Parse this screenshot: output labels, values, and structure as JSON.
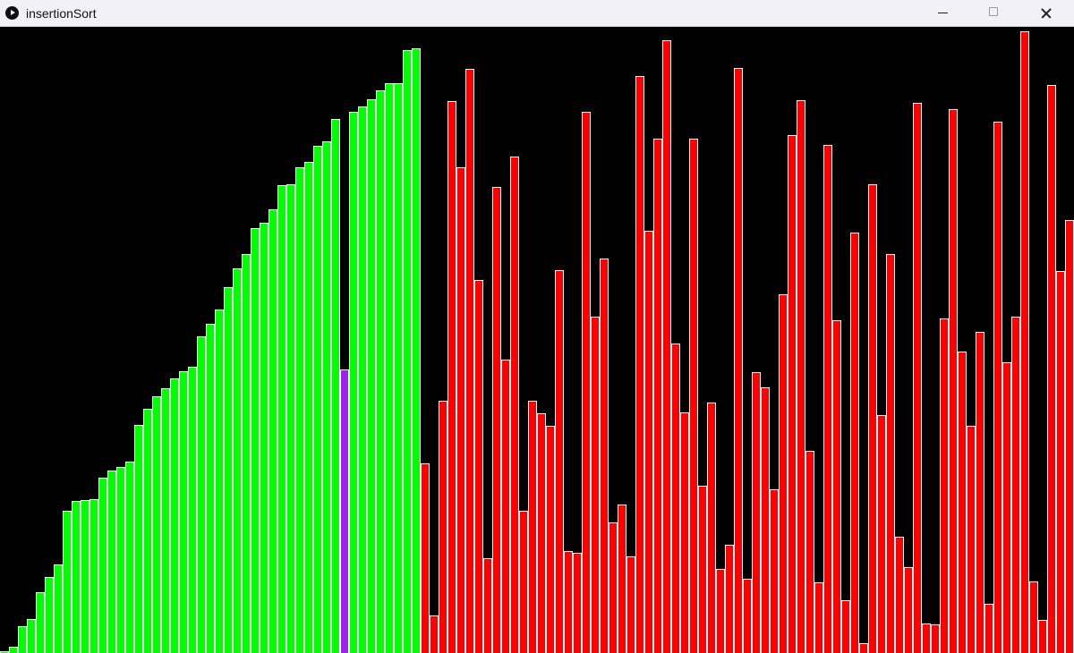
{
  "window": {
    "title": "insertionSort",
    "icon": "play-circle-icon"
  },
  "controls": {
    "minimize_icon": "minimize-icon",
    "maximize_icon": "maximize-icon",
    "close_icon": "close-icon"
  },
  "chart_data": {
    "type": "bar",
    "title": "",
    "ylim": [
      0,
      700
    ],
    "colors": {
      "sorted": "#00ff00",
      "current": "#a020f0",
      "unsorted": "#ff0000"
    },
    "bars": [
      {
        "v": 2,
        "s": "sorted"
      },
      {
        "v": 7,
        "s": "sorted"
      },
      {
        "v": 30,
        "s": "sorted"
      },
      {
        "v": 38,
        "s": "sorted"
      },
      {
        "v": 68,
        "s": "sorted"
      },
      {
        "v": 85,
        "s": "sorted"
      },
      {
        "v": 99,
        "s": "sorted"
      },
      {
        "v": 159,
        "s": "sorted"
      },
      {
        "v": 170,
        "s": "sorted"
      },
      {
        "v": 171,
        "s": "sorted"
      },
      {
        "v": 172,
        "s": "sorted"
      },
      {
        "v": 196,
        "s": "sorted"
      },
      {
        "v": 204,
        "s": "sorted"
      },
      {
        "v": 208,
        "s": "sorted"
      },
      {
        "v": 214,
        "s": "sorted"
      },
      {
        "v": 255,
        "s": "sorted"
      },
      {
        "v": 273,
        "s": "sorted"
      },
      {
        "v": 287,
        "s": "sorted"
      },
      {
        "v": 296,
        "s": "sorted"
      },
      {
        "v": 307,
        "s": "sorted"
      },
      {
        "v": 315,
        "s": "sorted"
      },
      {
        "v": 320,
        "s": "sorted"
      },
      {
        "v": 354,
        "s": "sorted"
      },
      {
        "v": 368,
        "s": "sorted"
      },
      {
        "v": 384,
        "s": "sorted"
      },
      {
        "v": 409,
        "s": "sorted"
      },
      {
        "v": 430,
        "s": "sorted"
      },
      {
        "v": 446,
        "s": "sorted"
      },
      {
        "v": 475,
        "s": "sorted"
      },
      {
        "v": 481,
        "s": "sorted"
      },
      {
        "v": 496,
        "s": "sorted"
      },
      {
        "v": 523,
        "s": "sorted"
      },
      {
        "v": 524,
        "s": "sorted"
      },
      {
        "v": 543,
        "s": "sorted"
      },
      {
        "v": 549,
        "s": "sorted"
      },
      {
        "v": 567,
        "s": "sorted"
      },
      {
        "v": 572,
        "s": "sorted"
      },
      {
        "v": 597,
        "s": "sorted"
      },
      {
        "v": 317,
        "s": "current"
      },
      {
        "v": 605,
        "s": "sorted"
      },
      {
        "v": 611,
        "s": "sorted"
      },
      {
        "v": 619,
        "s": "sorted"
      },
      {
        "v": 629,
        "s": "sorted"
      },
      {
        "v": 637,
        "s": "sorted"
      },
      {
        "v": 637,
        "s": "sorted"
      },
      {
        "v": 674,
        "s": "sorted"
      },
      {
        "v": 676,
        "s": "sorted"
      },
      {
        "v": 212,
        "s": "unsorted"
      },
      {
        "v": 42,
        "s": "unsorted"
      },
      {
        "v": 282,
        "s": "unsorted"
      },
      {
        "v": 617,
        "s": "unsorted"
      },
      {
        "v": 543,
        "s": "unsorted"
      },
      {
        "v": 653,
        "s": "unsorted"
      },
      {
        "v": 417,
        "s": "unsorted"
      },
      {
        "v": 106,
        "s": "unsorted"
      },
      {
        "v": 521,
        "s": "unsorted"
      },
      {
        "v": 328,
        "s": "unsorted"
      },
      {
        "v": 555,
        "s": "unsorted"
      },
      {
        "v": 159,
        "s": "unsorted"
      },
      {
        "v": 282,
        "s": "unsorted"
      },
      {
        "v": 268,
        "s": "unsorted"
      },
      {
        "v": 254,
        "s": "unsorted"
      },
      {
        "v": 428,
        "s": "unsorted"
      },
      {
        "v": 114,
        "s": "unsorted"
      },
      {
        "v": 112,
        "s": "unsorted"
      },
      {
        "v": 605,
        "s": "unsorted"
      },
      {
        "v": 376,
        "s": "unsorted"
      },
      {
        "v": 441,
        "s": "unsorted"
      },
      {
        "v": 146,
        "s": "unsorted"
      },
      {
        "v": 166,
        "s": "unsorted"
      },
      {
        "v": 108,
        "s": "unsorted"
      },
      {
        "v": 645,
        "s": "unsorted"
      },
      {
        "v": 472,
        "s": "unsorted"
      },
      {
        "v": 575,
        "s": "unsorted"
      },
      {
        "v": 685,
        "s": "unsorted"
      },
      {
        "v": 346,
        "s": "unsorted"
      },
      {
        "v": 269,
        "s": "unsorted"
      },
      {
        "v": 575,
        "s": "unsorted"
      },
      {
        "v": 187,
        "s": "unsorted"
      },
      {
        "v": 280,
        "s": "unsorted"
      },
      {
        "v": 94,
        "s": "unsorted"
      },
      {
        "v": 121,
        "s": "unsorted"
      },
      {
        "v": 654,
        "s": "unsorted"
      },
      {
        "v": 83,
        "s": "unsorted"
      },
      {
        "v": 314,
        "s": "unsorted"
      },
      {
        "v": 297,
        "s": "unsorted"
      },
      {
        "v": 183,
        "s": "unsorted"
      },
      {
        "v": 401,
        "s": "unsorted"
      },
      {
        "v": 579,
        "s": "unsorted"
      },
      {
        "v": 618,
        "s": "unsorted"
      },
      {
        "v": 226,
        "s": "unsorted"
      },
      {
        "v": 79,
        "s": "unsorted"
      },
      {
        "v": 568,
        "s": "unsorted"
      },
      {
        "v": 372,
        "s": "unsorted"
      },
      {
        "v": 59,
        "s": "unsorted"
      },
      {
        "v": 470,
        "s": "unsorted"
      },
      {
        "v": 11,
        "s": "unsorted"
      },
      {
        "v": 524,
        "s": "unsorted"
      },
      {
        "v": 266,
        "s": "unsorted"
      },
      {
        "v": 446,
        "s": "unsorted"
      },
      {
        "v": 130,
        "s": "unsorted"
      },
      {
        "v": 96,
        "s": "unsorted"
      },
      {
        "v": 615,
        "s": "unsorted"
      },
      {
        "v": 33,
        "s": "unsorted"
      },
      {
        "v": 32,
        "s": "unsorted"
      },
      {
        "v": 374,
        "s": "unsorted"
      },
      {
        "v": 608,
        "s": "unsorted"
      },
      {
        "v": 337,
        "s": "unsorted"
      },
      {
        "v": 254,
        "s": "unsorted"
      },
      {
        "v": 359,
        "s": "unsorted"
      },
      {
        "v": 55,
        "s": "unsorted"
      },
      {
        "v": 594,
        "s": "unsorted"
      },
      {
        "v": 325,
        "s": "unsorted"
      },
      {
        "v": 376,
        "s": "unsorted"
      },
      {
        "v": 695,
        "s": "unsorted"
      },
      {
        "v": 80,
        "s": "unsorted"
      },
      {
        "v": 37,
        "s": "unsorted"
      },
      {
        "v": 635,
        "s": "unsorted"
      },
      {
        "v": 427,
        "s": "unsorted"
      },
      {
        "v": 484,
        "s": "unsorted"
      }
    ]
  }
}
